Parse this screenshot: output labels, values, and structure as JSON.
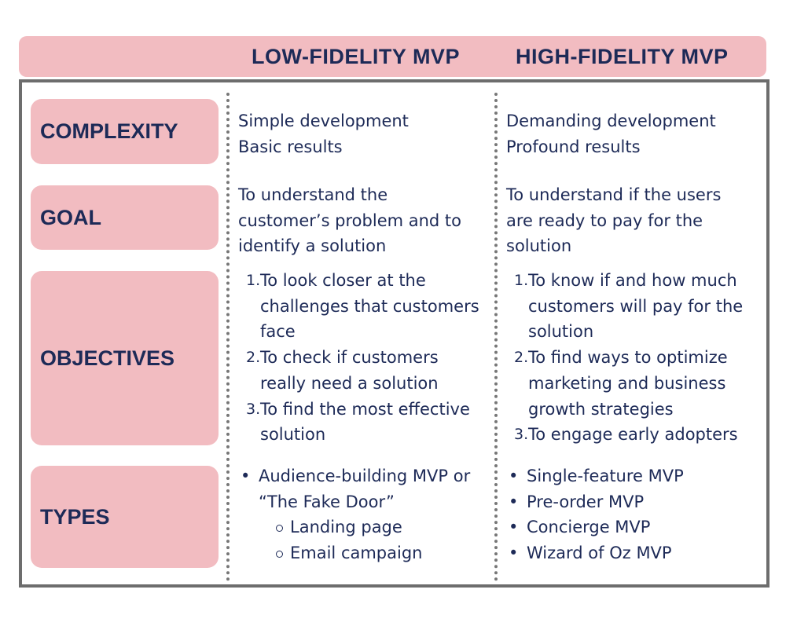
{
  "header": {
    "low_title": "LOW-FIDELITY MVP",
    "high_title": "HIGH-FIDELITY MVP"
  },
  "rows": {
    "complexity": {
      "label": "COMPLEXITY",
      "low": [
        "Simple development",
        "Basic results"
      ],
      "high": [
        "Demanding development",
        "Profound results"
      ]
    },
    "goal": {
      "label": "GOAL",
      "low": [
        "To understand the",
        "customer’s problem and to",
        "identify a solution"
      ],
      "high": [
        "To understand if the users",
        "are ready to pay for the",
        "solution"
      ]
    },
    "objectives": {
      "label": "OBJECTIVES",
      "low": [
        {
          "num": "1.",
          "lines": [
            "To look closer at the",
            "challenges that customers",
            "face"
          ]
        },
        {
          "num": "2.",
          "lines": [
            "To check if customers",
            "really need a solution"
          ]
        },
        {
          "num": "3.",
          "lines": [
            "To find the most effective",
            "solution"
          ]
        }
      ],
      "high": [
        {
          "num": "1.",
          "lines": [
            "To know if and how much",
            "customers will pay for the",
            "solution"
          ]
        },
        {
          "num": "2.",
          "lines": [
            "To find ways to optimize",
            "marketing and business",
            "growth strategies"
          ]
        },
        {
          "num": "3.",
          "lines": [
            "To engage early adopters"
          ]
        }
      ]
    },
    "types": {
      "label": "TYPES",
      "low": {
        "item": [
          "Audience-building MVP or",
          "“The Fake Door”"
        ],
        "sub": [
          "Landing page",
          "Email campaign"
        ]
      },
      "high": [
        "Single-feature MVP",
        "Pre-order MVP",
        "Concierge MVP",
        "Wizard of Oz MVP"
      ]
    }
  },
  "colors": {
    "accent_pink": "#f2bcc1",
    "text_navy": "#1d2a57",
    "frame_gray": "#6d6d6d"
  }
}
